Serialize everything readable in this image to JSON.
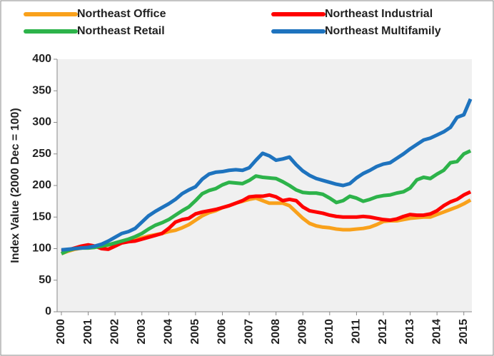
{
  "chart_data": {
    "type": "line",
    "ylabel": "Index Value (2000 Dec = 100)",
    "x": [
      2000,
      2000.25,
      2000.5,
      2000.75,
      2001,
      2001.25,
      2001.5,
      2001.75,
      2002,
      2002.25,
      2002.5,
      2002.75,
      2003,
      2003.25,
      2003.5,
      2003.75,
      2004,
      2004.25,
      2004.5,
      2004.75,
      2005,
      2005.25,
      2005.5,
      2005.75,
      2006,
      2006.25,
      2006.5,
      2006.75,
      2007,
      2007.25,
      2007.5,
      2007.75,
      2008,
      2008.25,
      2008.5,
      2008.75,
      2009,
      2009.25,
      2009.5,
      2009.75,
      2010,
      2010.25,
      2010.5,
      2010.75,
      2011,
      2011.25,
      2011.5,
      2011.75,
      2012,
      2012.25,
      2012.5,
      2012.75,
      2013,
      2013.25,
      2013.5,
      2013.75,
      2014,
      2014.25,
      2014.5,
      2014.75,
      2015,
      2015.25
    ],
    "series": [
      {
        "name": "Northeast Office",
        "color": "#f9a11b",
        "values": [
          92,
          96,
          99,
          101,
          103,
          104,
          104,
          106,
          108,
          110,
          112,
          114,
          117,
          120,
          122,
          124,
          127,
          129,
          133,
          138,
          145,
          152,
          157,
          160,
          165,
          168,
          172,
          175,
          178,
          180,
          176,
          172,
          172,
          172,
          168,
          158,
          148,
          140,
          136,
          134,
          133,
          131,
          130,
          130,
          131,
          132,
          134,
          138,
          143,
          144,
          144,
          146,
          148,
          149,
          150,
          150,
          154,
          158,
          162,
          166,
          171,
          177
        ]
      },
      {
        "name": "Northeast Industrial",
        "color": "#ff0000",
        "values": [
          96,
          98,
          101,
          104,
          106,
          104,
          100,
          99,
          104,
          109,
          111,
          112,
          115,
          118,
          121,
          124,
          132,
          142,
          146,
          148,
          155,
          158,
          160,
          162,
          165,
          168,
          172,
          176,
          182,
          183,
          183,
          185,
          182,
          176,
          178,
          176,
          166,
          160,
          158,
          156,
          153,
          151,
          150,
          150,
          150,
          151,
          150,
          148,
          146,
          145,
          147,
          151,
          154,
          153,
          153,
          155,
          160,
          168,
          174,
          178,
          185,
          190
        ]
      },
      {
        "name": "Northeast Retail",
        "color": "#2db34a",
        "values": [
          92,
          97,
          100,
          101,
          101,
          102,
          104,
          106,
          109,
          112,
          115,
          119,
          124,
          131,
          137,
          141,
          146,
          153,
          160,
          166,
          176,
          187,
          192,
          195,
          201,
          205,
          204,
          203,
          208,
          215,
          213,
          212,
          211,
          206,
          200,
          193,
          189,
          188,
          188,
          186,
          180,
          173,
          176,
          183,
          180,
          175,
          178,
          182,
          184,
          185,
          188,
          190,
          196,
          209,
          213,
          211,
          218,
          224,
          236,
          238,
          250,
          255
        ]
      },
      {
        "name": "Northeast Multifamily",
        "color": "#1e73be",
        "values": [
          98,
          99,
          100,
          101,
          102,
          104,
          107,
          112,
          118,
          124,
          127,
          132,
          142,
          152,
          159,
          165,
          171,
          178,
          187,
          193,
          198,
          210,
          218,
          221,
          222,
          224,
          225,
          224,
          228,
          240,
          251,
          247,
          240,
          242,
          245,
          233,
          223,
          216,
          211,
          208,
          205,
          202,
          200,
          203,
          212,
          219,
          224,
          230,
          234,
          236,
          243,
          250,
          258,
          265,
          272,
          275,
          280,
          285,
          292,
          308,
          312,
          337
        ]
      }
    ],
    "xlim": [
      2000,
      2015.3
    ],
    "xticks": [
      2000,
      2001,
      2002,
      2003,
      2004,
      2005,
      2006,
      2007,
      2008,
      2009,
      2010,
      2011,
      2012,
      2013,
      2014,
      2015
    ],
    "ylim": [
      0,
      400
    ],
    "yticks": [
      0,
      50,
      100,
      150,
      200,
      250,
      300,
      350,
      400
    ],
    "grid": false
  }
}
